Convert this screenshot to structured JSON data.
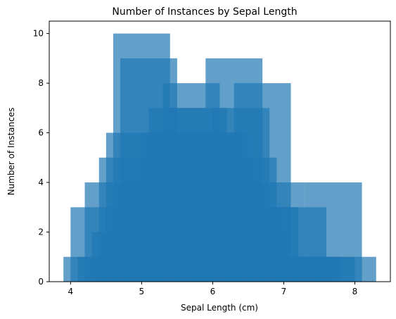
{
  "chart_data": {
    "type": "bar",
    "title": "Number of Instances by Sepal Length",
    "xlabel": "Sepal Length (cm)",
    "ylabel": "Number of Instances",
    "xlim": [
      3.7,
      8.5
    ],
    "ylim": [
      0,
      10.5
    ],
    "x_ticks": [
      4,
      5,
      6,
      7,
      8
    ],
    "y_ticks": [
      0,
      2,
      4,
      6,
      8,
      10
    ],
    "grid": false,
    "legend": "none",
    "bar_width": 0.8,
    "bar_color": "#1f77b4",
    "bar_opacity": 0.7,
    "x": [
      4.3,
      4.4,
      4.5,
      4.6,
      4.7,
      4.8,
      4.9,
      5.0,
      5.1,
      5.2,
      5.3,
      5.4,
      5.5,
      5.6,
      5.7,
      5.8,
      5.9,
      6.0,
      6.1,
      6.2,
      6.3,
      6.4,
      6.5,
      6.6,
      6.7,
      6.8,
      6.9,
      7.0,
      7.1,
      7.2,
      7.3,
      7.4,
      7.6,
      7.7,
      7.9
    ],
    "values": [
      1,
      3,
      1,
      4,
      2,
      5,
      6,
      10,
      9,
      4,
      1,
      6,
      7,
      6,
      8,
      7,
      3,
      6,
      6,
      4,
      9,
      7,
      5,
      2,
      8,
      3,
      4,
      1,
      1,
      3,
      1,
      1,
      1,
      4,
      1
    ]
  }
}
